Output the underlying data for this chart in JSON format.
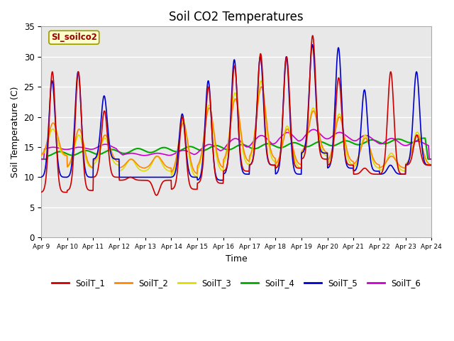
{
  "title": "Soil CO2 Temperatures",
  "xlabel": "Time",
  "ylabel": "Soil Temperature (C)",
  "ylim": [
    0,
    35
  ],
  "label_box_text": "SI_soilco2",
  "bg_color": "#e8e8e8",
  "grid_color": "white",
  "series": {
    "SoilT_1": {
      "color": "#cc0000",
      "lw": 1.2
    },
    "SoilT_2": {
      "color": "#ff8800",
      "lw": 1.2
    },
    "SoilT_3": {
      "color": "#dddd00",
      "lw": 1.2
    },
    "SoilT_4": {
      "color": "#00aa00",
      "lw": 1.5
    },
    "SoilT_5": {
      "color": "#0000cc",
      "lw": 1.2
    },
    "SoilT_6": {
      "color": "#cc00cc",
      "lw": 1.2
    }
  },
  "xtick_labels": [
    "Apr 9",
    "Apr 10",
    "Apr 11",
    "Apr 12",
    "Apr 13",
    "Apr 14",
    "Apr 15",
    "Apr 16",
    "Apr 17",
    "Apr 18",
    "Apr 19",
    "Apr 20",
    "Apr 21",
    "Apr 22",
    "Apr 23",
    "Apr 24"
  ],
  "yticks": [
    0,
    5,
    10,
    15,
    20,
    25,
    30,
    35
  ],
  "n_days": 15,
  "pts_per_day": 96
}
